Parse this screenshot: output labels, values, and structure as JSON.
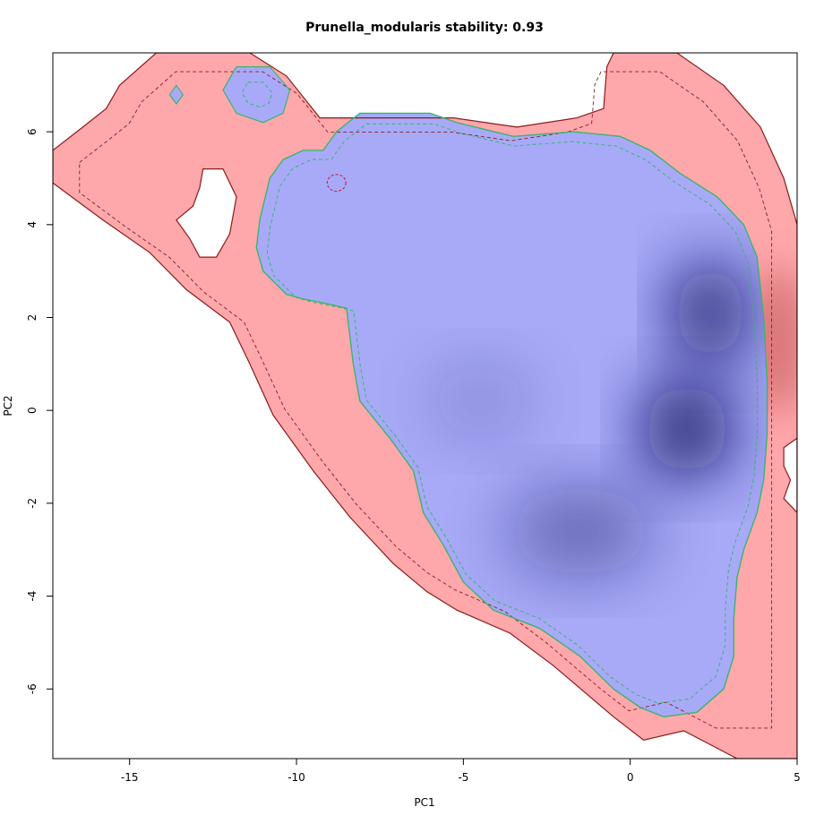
{
  "chart_data": {
    "type": "heatmap",
    "title": "Prunella_modularis stability: 0.93",
    "xlabel": "PC1",
    "ylabel": "PC2",
    "xlim": [
      -17.3,
      5.0
    ],
    "ylim": [
      -7.5,
      7.7
    ],
    "x_ticks": [
      -15,
      -10,
      -5,
      0,
      5
    ],
    "x_tick_labels": [
      "-15",
      "-10",
      "-5",
      "0",
      "5"
    ],
    "y_ticks": [
      -6,
      -4,
      -2,
      0,
      2,
      4,
      6
    ],
    "y_tick_labels": [
      "-6",
      "-4",
      "-2",
      "0",
      "2",
      "4",
      "6"
    ],
    "colors": {
      "background_niche": "#ffa8ab",
      "stable_niche": "#a8aaf8",
      "density_peak": "#0b0d5e",
      "background_peak": "#d06a6e",
      "background_outline": "#8b1a1a",
      "stable_outline": "#3cb371",
      "dashed_inner": "#c0142f"
    },
    "regions": {
      "background_niche": [
        [
          -17.3,
          5.6
        ],
        [
          -16.4,
          6.1
        ],
        [
          -15.7,
          6.5
        ],
        [
          -15.3,
          7.0
        ],
        [
          -14.2,
          7.7
        ],
        [
          -11.4,
          7.7
        ],
        [
          -10.3,
          7.2
        ],
        [
          -9.3,
          6.3
        ],
        [
          -5.3,
          6.3
        ],
        [
          -3.4,
          6.1
        ],
        [
          -1.6,
          6.3
        ],
        [
          -0.8,
          6.5
        ],
        [
          -0.7,
          7.4
        ],
        [
          -0.5,
          7.7
        ],
        [
          1.4,
          7.7
        ],
        [
          2.8,
          7.0
        ],
        [
          3.9,
          6.1
        ],
        [
          4.6,
          5.0
        ],
        [
          5.0,
          4.0
        ],
        [
          5.0,
          -7.5
        ],
        [
          3.2,
          -7.5
        ],
        [
          2.4,
          -7.2
        ],
        [
          1.6,
          -6.9
        ],
        [
          0.4,
          -7.1
        ],
        [
          -0.5,
          -6.6
        ],
        [
          -2.3,
          -5.5
        ],
        [
          -3.6,
          -4.8
        ],
        [
          -5.2,
          -4.3
        ],
        [
          -6.1,
          -3.9
        ],
        [
          -7.1,
          -3.3
        ],
        [
          -8.4,
          -2.3
        ],
        [
          -9.5,
          -1.3
        ],
        [
          -10.7,
          -0.1
        ],
        [
          -11.4,
          1.0
        ],
        [
          -12.0,
          1.9
        ],
        [
          -13.3,
          2.6
        ],
        [
          -14.4,
          3.4
        ],
        [
          -15.8,
          4.1
        ],
        [
          -17.3,
          4.9
        ]
      ],
      "background_holes": [
        [
          [
            -12.8,
            5.2
          ],
          [
            -12.2,
            5.2
          ],
          [
            -11.8,
            4.6
          ],
          [
            -12.0,
            3.8
          ],
          [
            -12.4,
            3.3
          ],
          [
            -12.9,
            3.3
          ],
          [
            -13.2,
            3.7
          ],
          [
            -13.6,
            4.1
          ],
          [
            -13.1,
            4.4
          ],
          [
            -12.9,
            4.8
          ]
        ],
        [
          [
            5.0,
            -0.6
          ],
          [
            4.6,
            -0.8
          ],
          [
            4.6,
            -1.2
          ],
          [
            4.8,
            -1.5
          ],
          [
            4.6,
            -1.9
          ],
          [
            5.0,
            -2.2
          ]
        ]
      ],
      "stable_niche": [
        [
          -8.1,
          6.4
        ],
        [
          -6.0,
          6.4
        ],
        [
          -5.2,
          6.2
        ],
        [
          -3.5,
          5.9
        ],
        [
          -1.7,
          6.0
        ],
        [
          -0.3,
          5.9
        ],
        [
          0.6,
          5.6
        ],
        [
          1.5,
          5.1
        ],
        [
          2.6,
          4.6
        ],
        [
          3.4,
          4.0
        ],
        [
          3.8,
          3.3
        ],
        [
          4.0,
          2.0
        ],
        [
          4.1,
          0.6
        ],
        [
          4.1,
          -0.5
        ],
        [
          4.0,
          -1.5
        ],
        [
          3.8,
          -2.2
        ],
        [
          3.4,
          -3.0
        ],
        [
          3.2,
          -3.6
        ],
        [
          3.1,
          -4.5
        ],
        [
          3.1,
          -5.3
        ],
        [
          2.8,
          -6.0
        ],
        [
          2.0,
          -6.5
        ],
        [
          1.0,
          -6.6
        ],
        [
          0.3,
          -6.4
        ],
        [
          -0.5,
          -6.0
        ],
        [
          -1.5,
          -5.3
        ],
        [
          -2.7,
          -4.7
        ],
        [
          -4.1,
          -4.3
        ],
        [
          -5.0,
          -3.7
        ],
        [
          -5.6,
          -2.9
        ],
        [
          -6.2,
          -2.2
        ],
        [
          -6.5,
          -1.3
        ],
        [
          -7.2,
          -0.6
        ],
        [
          -8.1,
          0.2
        ],
        [
          -8.3,
          1.0
        ],
        [
          -8.5,
          2.2
        ],
        [
          -9.1,
          2.3
        ],
        [
          -9.8,
          2.4
        ],
        [
          -10.3,
          2.5
        ],
        [
          -11.0,
          3.0
        ],
        [
          -11.2,
          3.5
        ],
        [
          -11.1,
          4.1
        ],
        [
          -10.8,
          5.0
        ],
        [
          -10.4,
          5.4
        ],
        [
          -9.8,
          5.6
        ],
        [
          -9.2,
          5.6
        ],
        [
          -8.8,
          6.0
        ]
      ],
      "stable_islands": [
        [
          [
            -11.8,
            7.4
          ],
          [
            -10.8,
            7.4
          ],
          [
            -10.2,
            6.9
          ],
          [
            -10.4,
            6.4
          ],
          [
            -11.0,
            6.2
          ],
          [
            -11.8,
            6.4
          ],
          [
            -12.2,
            6.9
          ]
        ],
        [
          [
            -13.6,
            7.0
          ],
          [
            -13.4,
            6.8
          ],
          [
            -13.6,
            6.6
          ],
          [
            -13.8,
            6.8
          ]
        ]
      ],
      "density_peaks": [
        {
          "x": 1.7,
          "y": -0.4,
          "sx": 1.3,
          "sy": 1.4,
          "w": 1.0
        },
        {
          "x": 2.4,
          "y": 2.1,
          "sx": 1.1,
          "sy": 1.5,
          "w": 0.95
        },
        {
          "x": -1.5,
          "y": -2.6,
          "sx": 2.2,
          "sy": 1.3,
          "w": 0.45
        },
        {
          "x": -4.5,
          "y": 0.2,
          "sx": 1.5,
          "sy": 1.1,
          "w": 0.22
        }
      ],
      "background_peak": {
        "x": 4.4,
        "y": 1.5,
        "sx": 0.9,
        "sy": 2.2
      }
    }
  }
}
